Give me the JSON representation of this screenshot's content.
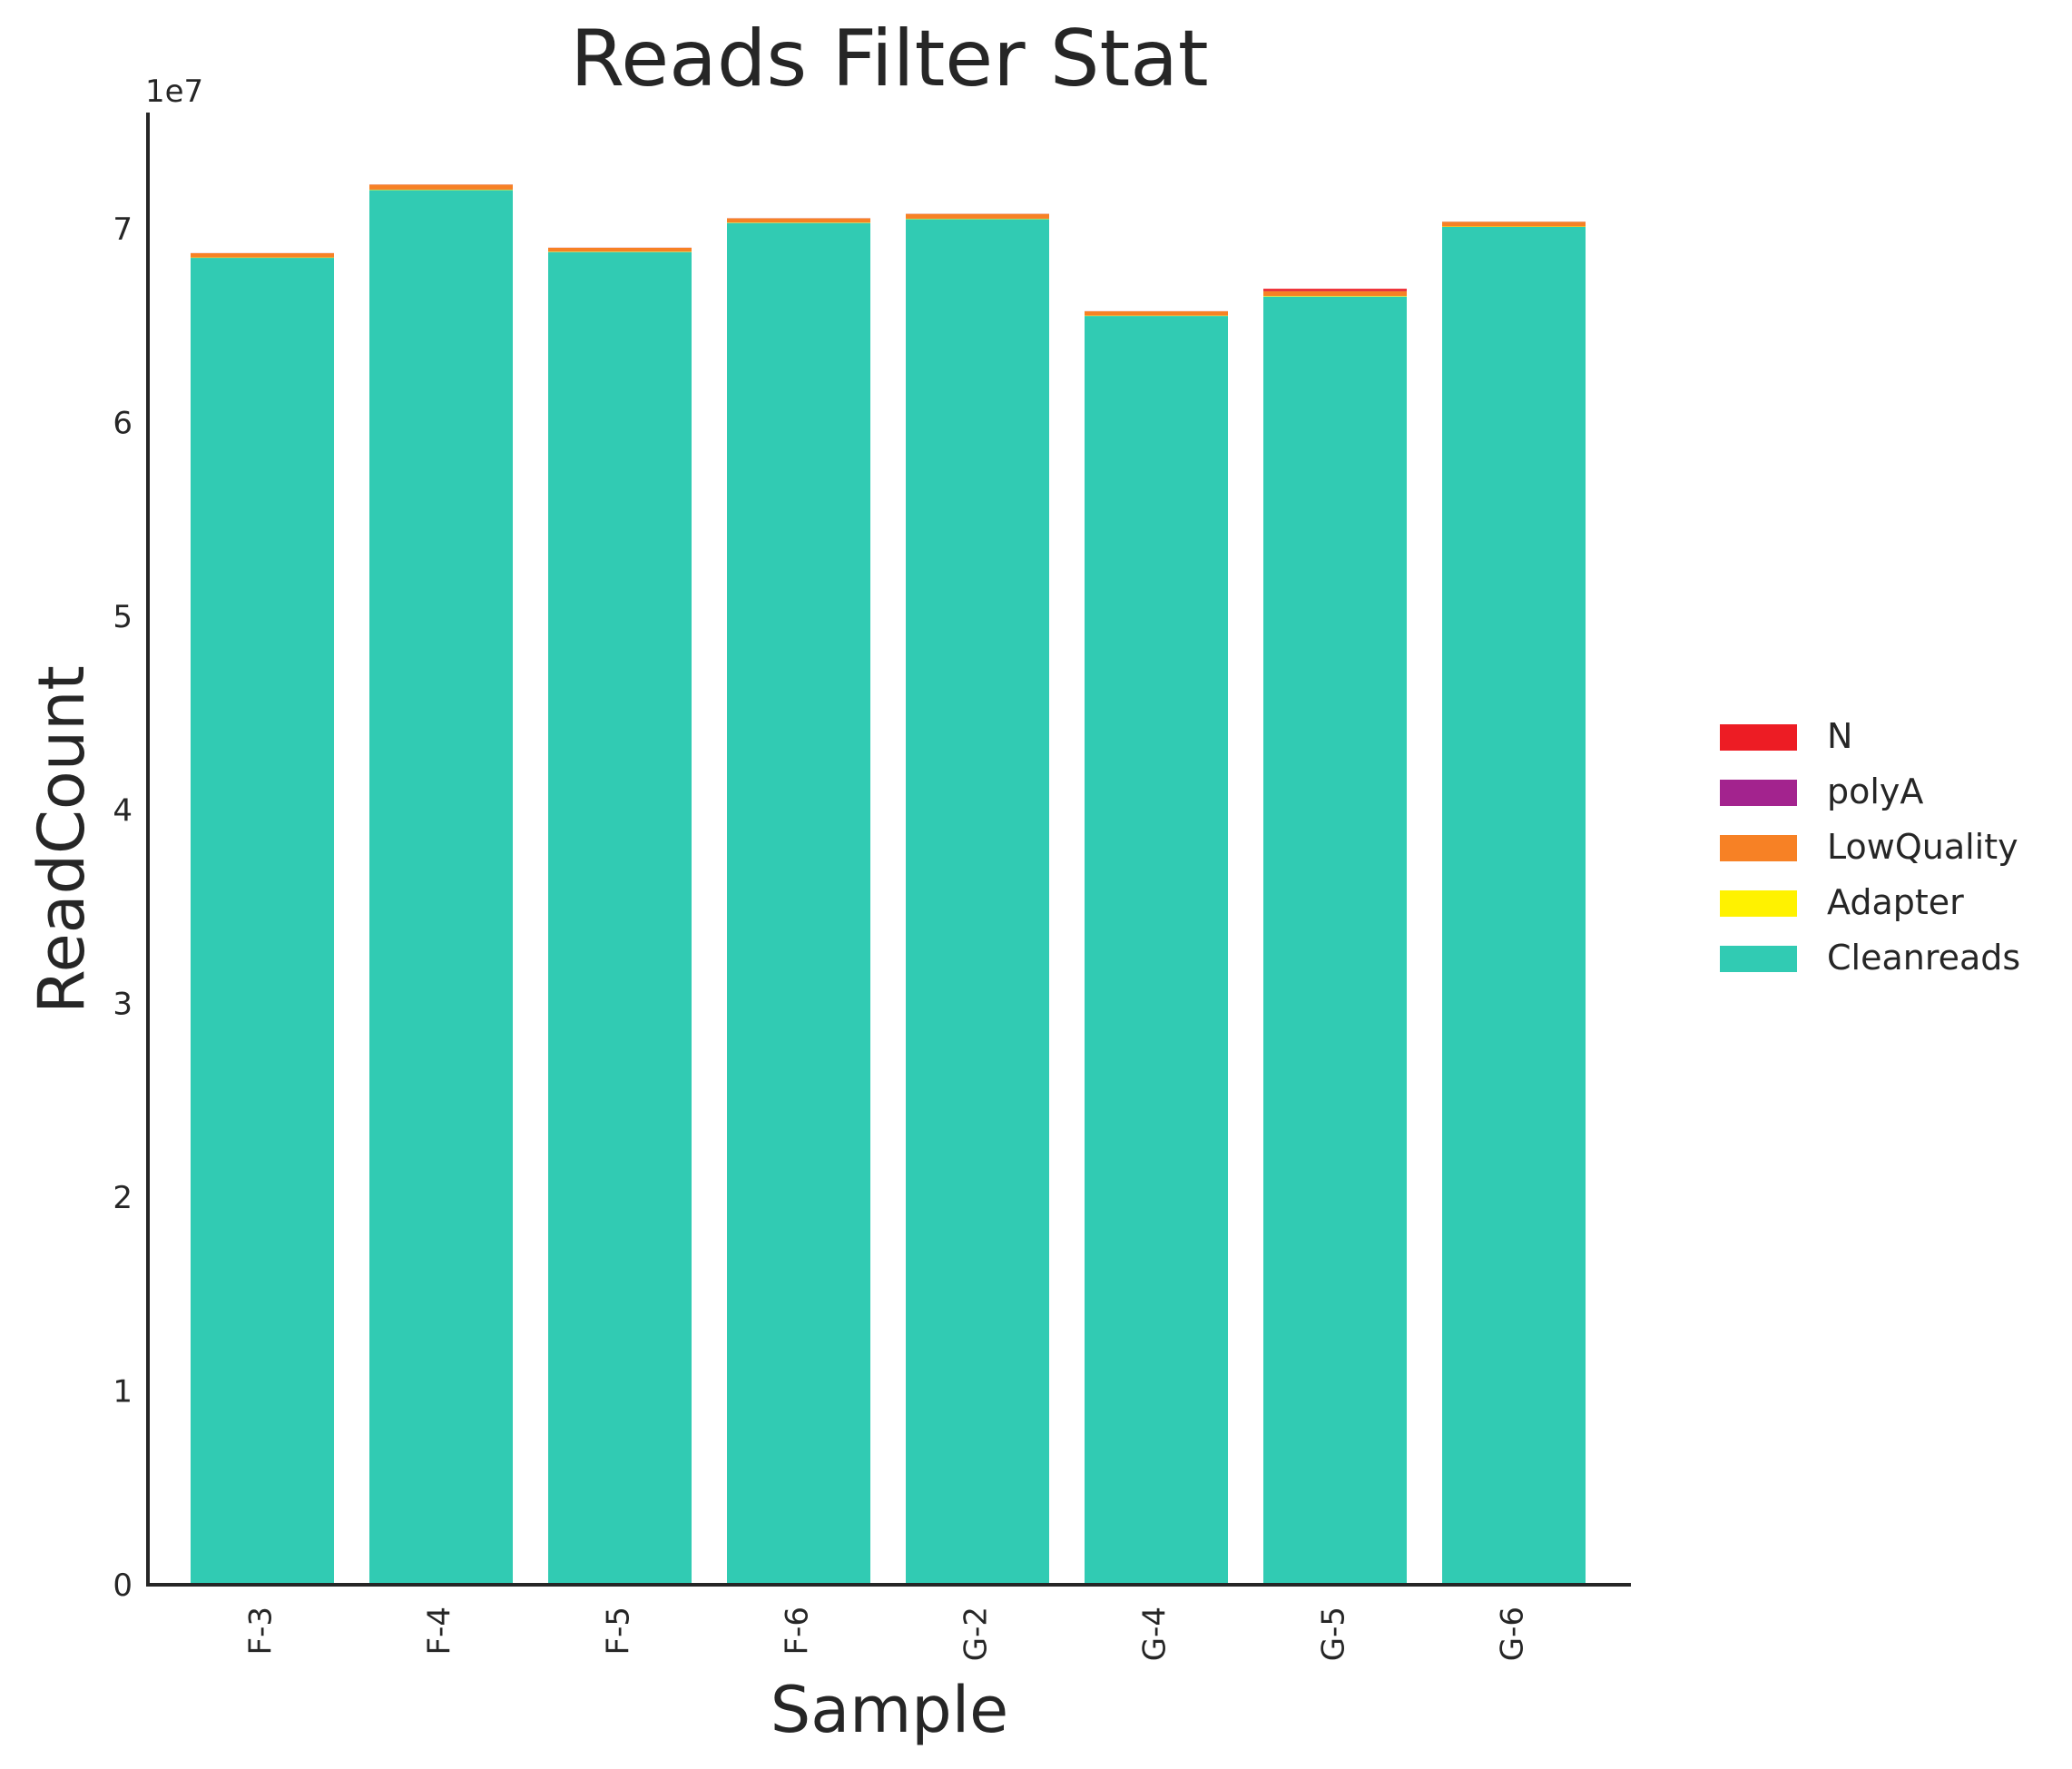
{
  "chart_data": {
    "type": "bar",
    "stacked": true,
    "title": "Reads Filter Stat",
    "xlabel": "Sample",
    "ylabel": "ReadCount",
    "y_offset_label": "1e7",
    "y_scale": 10000000,
    "ylim": [
      0,
      76000000
    ],
    "yticks": [
      0,
      1,
      2,
      3,
      4,
      5,
      6,
      7
    ],
    "grid": false,
    "legend_position": "right",
    "categories": [
      "F-3",
      "F-4",
      "F-5",
      "F-6",
      "G-2",
      "G-4",
      "G-5",
      "G-6"
    ],
    "series": [
      {
        "name": "Cleanreads",
        "color": "#31cbb3",
        "values": [
          68500000,
          72000000,
          68800000,
          70300000,
          70500000,
          65500000,
          66500000,
          70100000
        ]
      },
      {
        "name": "Adapter",
        "color": "#fff200",
        "values": [
          20000,
          20000,
          20000,
          20000,
          20000,
          20000,
          30000,
          20000
        ]
      },
      {
        "name": "LowQuality",
        "color": "#f78125",
        "values": [
          220000,
          260000,
          200000,
          220000,
          250000,
          220000,
          250000,
          240000
        ]
      },
      {
        "name": "polyA",
        "color": "#a3238e",
        "values": [
          5000,
          5000,
          5000,
          5000,
          5000,
          5000,
          10000,
          5000
        ]
      },
      {
        "name": "N",
        "color": "#ed1c24",
        "values": [
          0,
          0,
          0,
          0,
          0,
          0,
          110000,
          0
        ]
      }
    ],
    "legend_order": [
      "N",
      "polyA",
      "LowQuality",
      "Adapter",
      "Cleanreads"
    ]
  }
}
